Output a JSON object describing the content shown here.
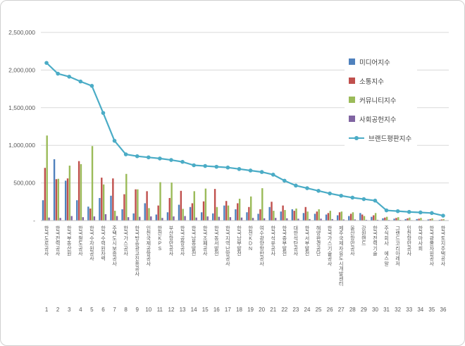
{
  "chart_data": {
    "type": "combo",
    "title": "",
    "xlabel": "",
    "ylabel": "",
    "ylim": [
      0,
      2500000
    ],
    "y_tick_step": 500000,
    "y_tick_labels": [
      "-",
      "500,000",
      "1,000,000",
      "1,500,000",
      "2,000,000",
      "2,500,000"
    ],
    "grid": true,
    "legend_position": "top-right-inside",
    "categories": [
      "한국도로공사",
      "한국전력공사",
      "한국부동산원",
      "한국철도공사",
      "한국수자원공사",
      "한국수력원자력",
      "주택도시보증공사",
      "한국가스공사",
      "한국방송광고진흥공사",
      "인천국제공항공사",
      "한전KPS",
      "부산항만공사",
      "한국공항공사",
      "한국남동발전",
      "한국조폐공사",
      "한국동서발전",
      "한국지역난방공사",
      "한국남부발전",
      "한전KDN",
      "여수광양항만공사",
      "한국석유공사",
      "한국중부발전",
      "대한석탄공사",
      "한국서부발전",
      "해양환경공단",
      "한국가스기술공사",
      "제주국제자유도시개발센터",
      "울산항만공사",
      "강원랜드",
      "한국전력기술",
      "주식회사 에스알",
      "그랜드코리아레저",
      "인천항만공사",
      "한국마사회",
      "한국광물자원공사",
      "한국토지주택공사"
    ],
    "rank_labels": [
      "1",
      "2",
      "3",
      "4",
      "5",
      "6",
      "7",
      "8",
      "9",
      "10",
      "11",
      "12",
      "13",
      "14",
      "15",
      "16",
      "17",
      "18",
      "19",
      "20",
      "21",
      "22",
      "23",
      "24",
      "25",
      "26",
      "27",
      "28",
      "29",
      "30",
      "31",
      "32",
      "33",
      "34",
      "35",
      "36"
    ],
    "series": [
      {
        "name": "미디어지수",
        "kind": "bar",
        "color": "#4F81BD",
        "values": [
          270000,
          815000,
          530000,
          270000,
          185000,
          300000,
          330000,
          150000,
          95000,
          230000,
          80000,
          110000,
          210000,
          180000,
          110000,
          95000,
          200000,
          150000,
          110000,
          90000,
          180000,
          120000,
          150000,
          100000,
          90000,
          80000,
          70000,
          60000,
          100000,
          50000,
          30000,
          25000,
          20000,
          20000,
          15000,
          10000
        ]
      },
      {
        "name": "소통지수",
        "kind": "bar",
        "color": "#C0504D",
        "values": [
          700000,
          550000,
          560000,
          790000,
          160000,
          570000,
          560000,
          350000,
          415000,
          390000,
          200000,
          300000,
          395000,
          230000,
          255000,
          420000,
          260000,
          230000,
          180000,
          150000,
          250000,
          200000,
          130000,
          180000,
          120000,
          100000,
          110000,
          90000,
          80000,
          70000,
          40000,
          35000,
          30000,
          25000,
          20000,
          15000
        ]
      },
      {
        "name": "커뮤니티지수",
        "kind": "bar",
        "color": "#9BBB59",
        "values": [
          1130000,
          555000,
          730000,
          750000,
          990000,
          480000,
          130000,
          620000,
          415000,
          165000,
          510000,
          505000,
          155000,
          390000,
          425000,
          180000,
          200000,
          290000,
          320000,
          430000,
          130000,
          140000,
          160000,
          120000,
          150000,
          130000,
          120000,
          110000,
          60000,
          100000,
          50000,
          45000,
          40000,
          35000,
          30000,
          20000
        ]
      },
      {
        "name": "사회공헌지수",
        "kind": "bar",
        "color": "#8064A2",
        "values": [
          40000,
          35000,
          60000,
          45000,
          55000,
          85000,
          60000,
          45000,
          50000,
          55000,
          35000,
          55000,
          60000,
          40000,
          55000,
          50000,
          45000,
          40000,
          35000,
          30000,
          35000,
          30000,
          25000,
          20000,
          25000,
          20000,
          15000,
          15000,
          10000,
          10000,
          8000,
          8000,
          6000,
          6000,
          5000,
          4000
        ]
      },
      {
        "name": "브랜드평판지수",
        "kind": "line",
        "color": "#4BACC6",
        "values": [
          2095000,
          1952000,
          1912000,
          1848000,
          1790000,
          1430000,
          1060000,
          880000,
          855000,
          840000,
          825000,
          805000,
          780000,
          735000,
          725000,
          715000,
          705000,
          685000,
          665000,
          645000,
          610000,
          530000,
          465000,
          430000,
          395000,
          360000,
          330000,
          305000,
          285000,
          265000,
          135000,
          125000,
          115000,
          108000,
          100000,
          65000
        ]
      }
    ]
  }
}
